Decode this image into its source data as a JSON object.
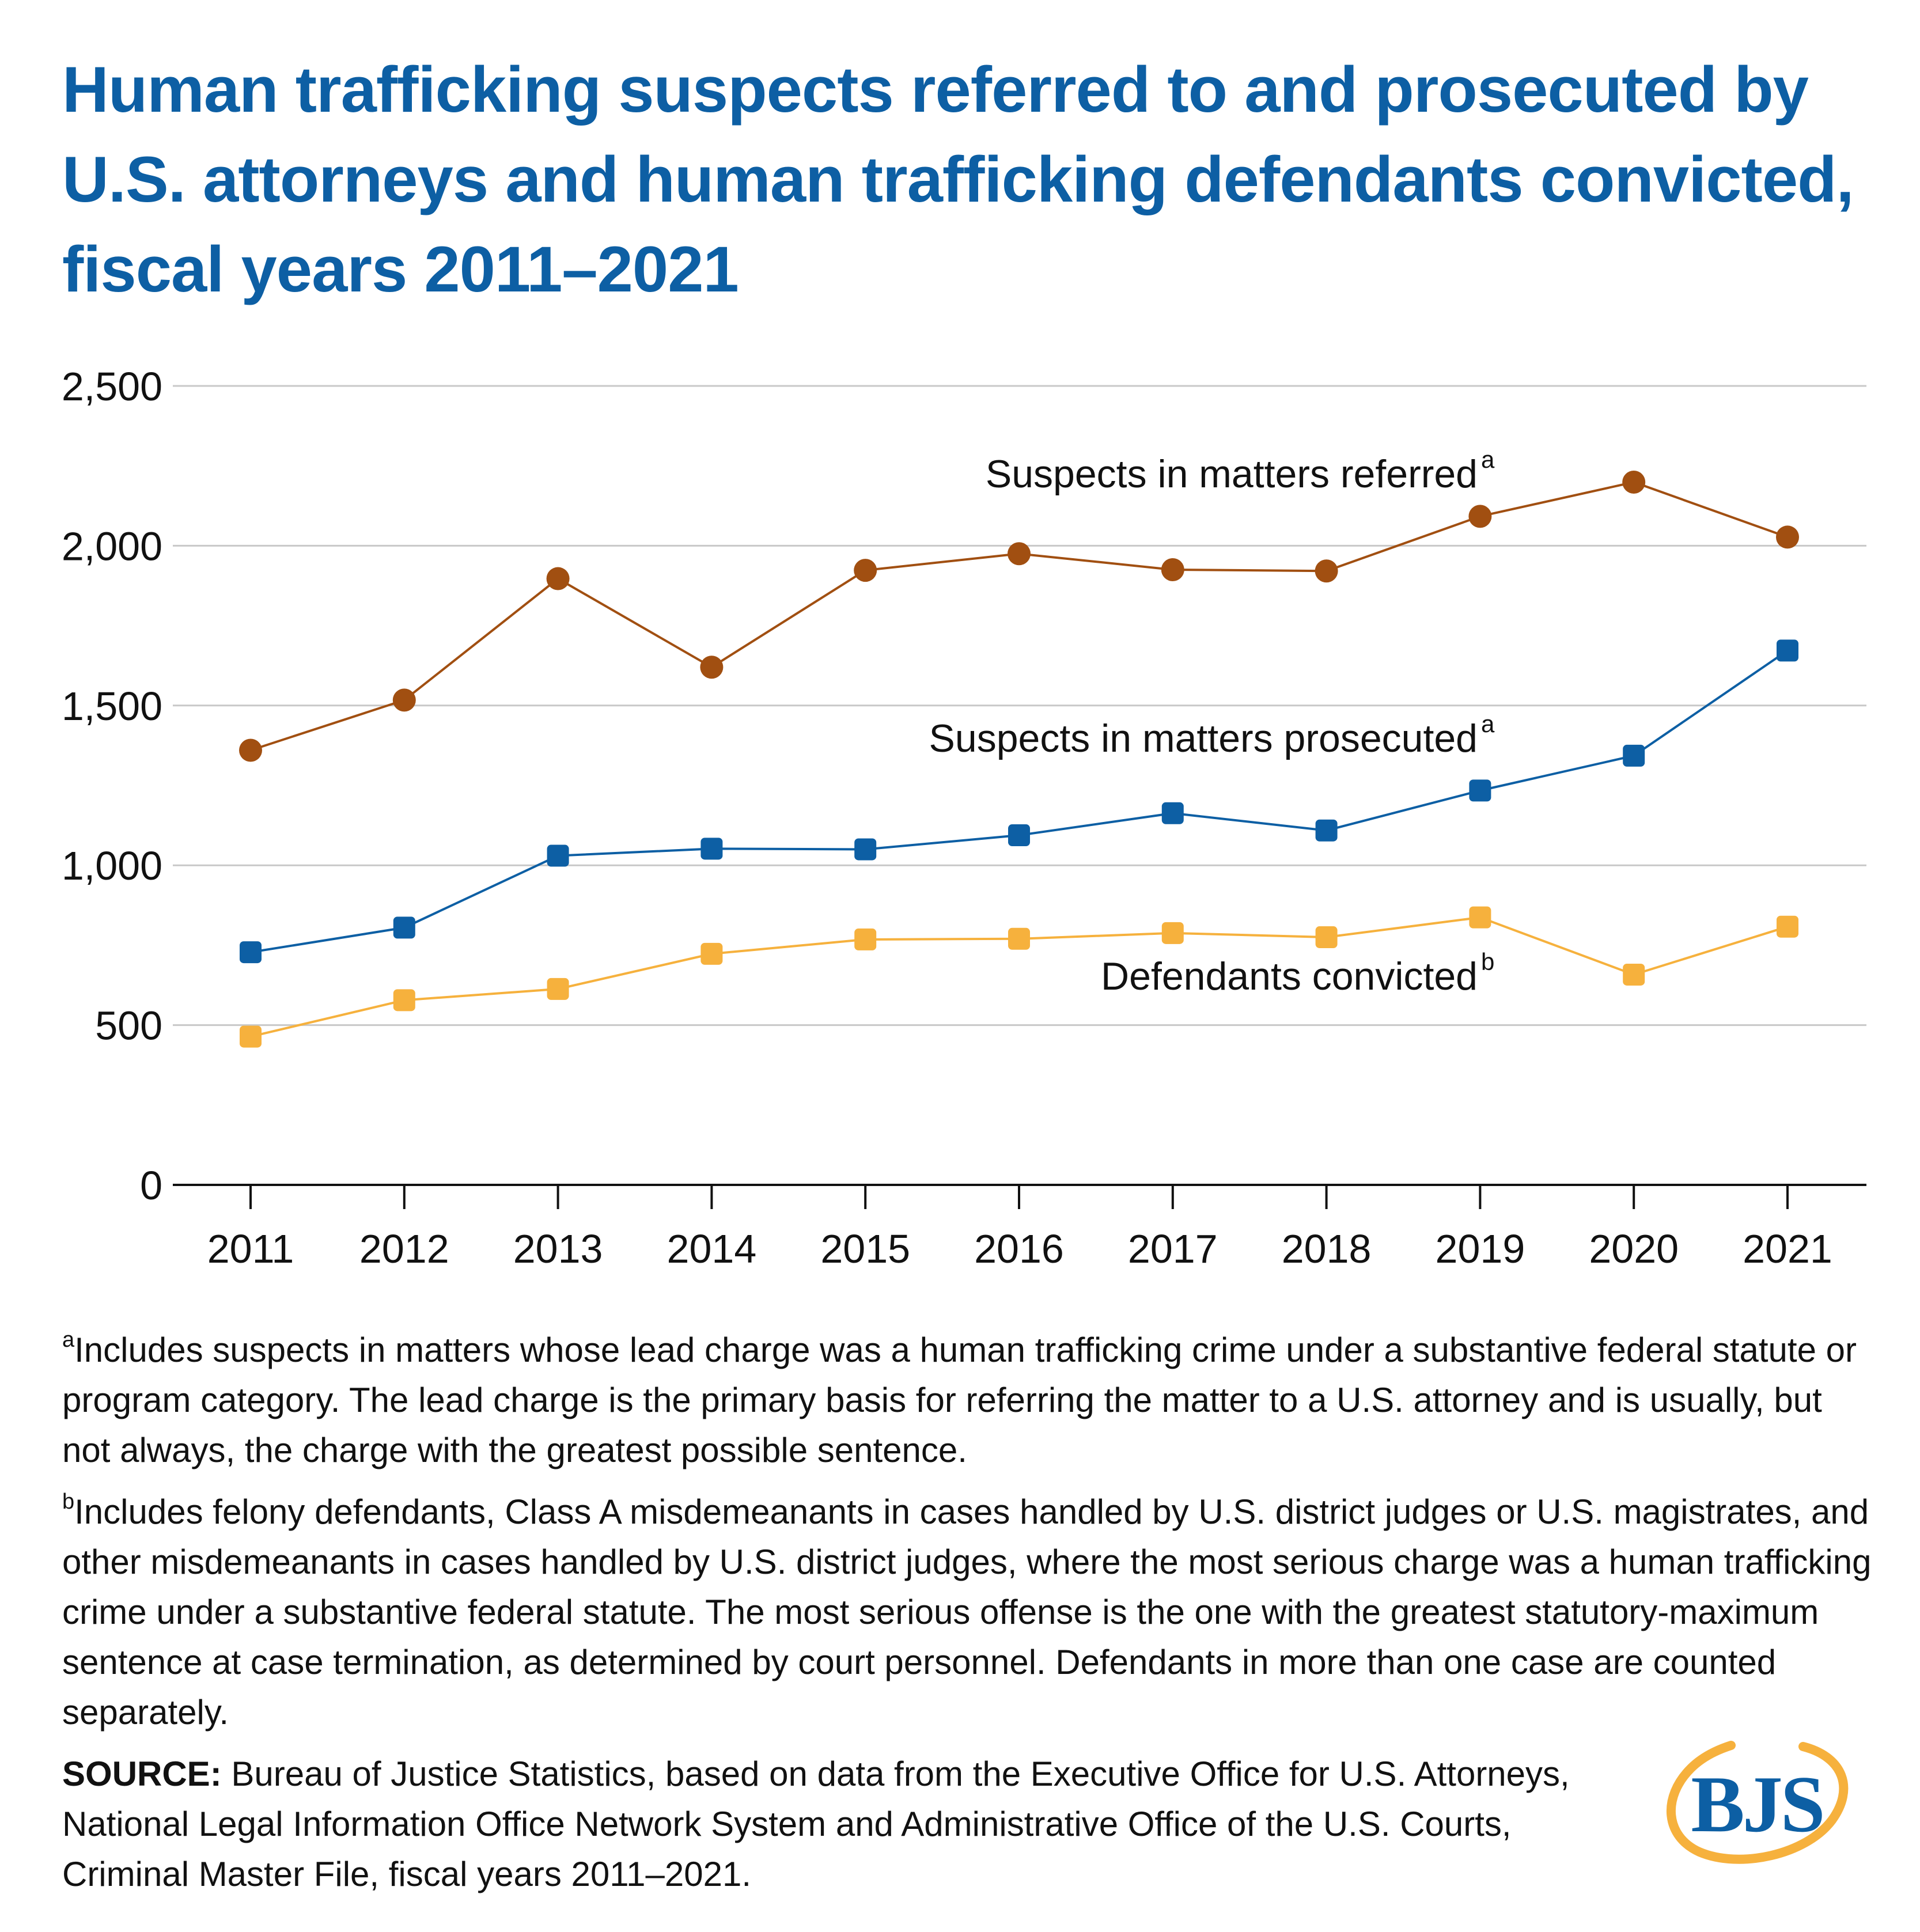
{
  "title": "Human trafficking suspects referred to and prosecuted by U.S. attorneys and human trafficking defendants convicted, fiscal years 2011–2021",
  "chart_data": {
    "type": "line",
    "x": [
      "2011",
      "2012",
      "2013",
      "2014",
      "2015",
      "2016",
      "2017",
      "2018",
      "2019",
      "2020",
      "2021"
    ],
    "ylim": [
      0,
      2500
    ],
    "yticks": [
      0,
      500,
      1000,
      1500,
      2000,
      2500
    ],
    "ytick_labels": [
      "0",
      "500",
      "1,000",
      "1,500",
      "2,000",
      "2,500"
    ],
    "grid": true,
    "series": [
      {
        "name": "Suspects in matters referred",
        "note_mark": "a",
        "color": "#a14f11",
        "marker": "circle",
        "values": [
          1360,
          1517,
          1897,
          1620,
          1923,
          1975,
          1925,
          1921,
          2092,
          2199,
          2027
        ]
      },
      {
        "name": "Suspects in matters prosecuted",
        "note_mark": "a",
        "color": "#0d5fa4",
        "marker": "square",
        "values": [
          728,
          805,
          1030,
          1052,
          1050,
          1094,
          1163,
          1109,
          1234,
          1343,
          1672
        ]
      },
      {
        "name": "Defendants convicted",
        "note_mark": "b",
        "color": "#f6b13d",
        "marker": "square",
        "values": [
          464,
          578,
          613,
          723,
          768,
          770,
          788,
          775,
          837,
          658,
          808
        ]
      }
    ]
  },
  "notes": {
    "note_a": {
      "mark": "a",
      "text": "Includes suspects in matters whose lead charge was a human trafficking crime under a substantive federal statute or program category. The lead charge is the primary basis for referring the matter to a U.S. attorney and is usually, but not always, the charge with the greatest possible sentence."
    },
    "note_b": {
      "mark": "b",
      "text": "Includes felony defendants, Class A misdemeanants in cases handled by U.S. district judges or U.S. magistrates, and other misdemeanants in cases handled by U.S. district judges, where the most serious charge was a human trafficking crime under a substantive federal statute. The most serious offense is the one with the greatest statutory-maximum sentence at case termination, as determined by court personnel. Defendants in more than one case are counted separately."
    },
    "source": {
      "label": "SOURCE:",
      "text": "Bureau of Justice Statistics, based on data from the Executive Office for U.S. Attorneys, National Legal Information Office Network System and Administrative Office of the U.S. Courts, Criminal Master File, fiscal years 2011–2021."
    }
  },
  "logo": {
    "text": "BJS",
    "colors": {
      "ring": "#f6b13d",
      "text": "#0d5fa4"
    }
  }
}
